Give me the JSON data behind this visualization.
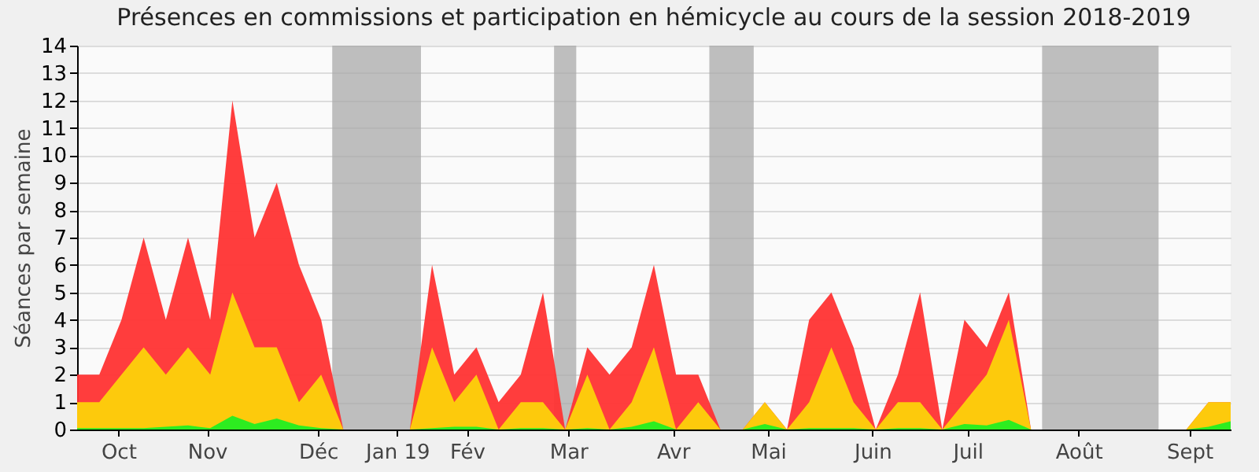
{
  "chart_data": {
    "type": "area",
    "title": "Présences en commissions et participation en hémicycle au cours de la session 2018-2019",
    "ylabel": "Séances par semaine",
    "x": [
      "2018-10-01",
      "2018-10-08",
      "2018-10-15",
      "2018-10-22",
      "2018-10-29",
      "2018-11-05",
      "2018-11-12",
      "2018-11-19",
      "2018-11-26",
      "2018-12-03",
      "2018-12-10",
      "2018-12-17",
      "2018-12-24",
      "2018-12-31",
      "2019-01-07",
      "2019-01-14",
      "2019-01-21",
      "2019-01-28",
      "2019-02-04",
      "2019-02-11",
      "2019-02-18",
      "2019-02-25",
      "2019-03-04",
      "2019-03-11",
      "2019-03-18",
      "2019-03-25",
      "2019-04-01",
      "2019-04-08",
      "2019-04-15",
      "2019-04-22",
      "2019-04-29",
      "2019-05-06",
      "2019-05-13",
      "2019-05-20",
      "2019-05-27",
      "2019-06-03",
      "2019-06-10",
      "2019-06-17",
      "2019-06-24",
      "2019-07-01",
      "2019-07-08",
      "2019-07-15",
      "2019-07-22",
      "2019-07-29",
      "2019-08-05",
      "2019-08-12",
      "2019-08-19",
      "2019-08-26",
      "2019-09-02",
      "2019-09-09",
      "2019-09-16",
      "2019-09-23",
      "2019-09-30"
    ],
    "series": [
      {
        "color": "#ff3333",
        "values": [
          2,
          2,
          4,
          7,
          4,
          7,
          4,
          12,
          7,
          9,
          6,
          4,
          0,
          0,
          0,
          0,
          6,
          2,
          3,
          1,
          2,
          5,
          0,
          3,
          2,
          3,
          6,
          2,
          2,
          0,
          0,
          1,
          0,
          4,
          5,
          3,
          0,
          2,
          5,
          0,
          4,
          3,
          5,
          0,
          0,
          0,
          0,
          0,
          0,
          0,
          0,
          1,
          1
        ]
      },
      {
        "color": "#fdd20a",
        "values": [
          1,
          1,
          2,
          3,
          2,
          3,
          2,
          5,
          3,
          3,
          1,
          2,
          0,
          0,
          0,
          0,
          3,
          1,
          2,
          0,
          1,
          1,
          0,
          2,
          0,
          1,
          3,
          0,
          1,
          0,
          0,
          1,
          0,
          1,
          3,
          1,
          0,
          1,
          1,
          0,
          1,
          2,
          4,
          0,
          0,
          0,
          0,
          0,
          0,
          0,
          0,
          1,
          1
        ]
      },
      {
        "color": "#22ee22",
        "values": [
          0.05,
          0.05,
          0.05,
          0.05,
          0.1,
          0.15,
          0.05,
          0.5,
          0.2,
          0.4,
          0.15,
          0.05,
          0,
          0,
          0,
          0,
          0.05,
          0.1,
          0.1,
          0,
          0.05,
          0.05,
          0,
          0.05,
          0,
          0.1,
          0.3,
          0,
          0,
          0,
          0,
          0.2,
          0,
          0.05,
          0.05,
          0.05,
          0,
          0.05,
          0.05,
          0,
          0.2,
          0.15,
          0.35,
          0,
          0,
          0,
          0,
          0,
          0,
          0,
          0,
          0.1,
          0.3
        ]
      }
    ],
    "xlim": [
      "2018-10-01",
      "2019-09-30"
    ],
    "xticks": [
      {
        "value": "2018-10-14",
        "label": "Oct"
      },
      {
        "value": "2018-11-11",
        "label": "Nov"
      },
      {
        "value": "2018-12-16",
        "label": "Déc"
      },
      {
        "value": "2019-01-10",
        "label": "Jan 19"
      },
      {
        "value": "2019-02-01",
        "label": "Fév"
      },
      {
        "value": "2019-03-05",
        "label": "Mar"
      },
      {
        "value": "2019-04-07",
        "label": "Avr"
      },
      {
        "value": "2019-05-07",
        "label": "Mai"
      },
      {
        "value": "2019-06-09",
        "label": "Juin"
      },
      {
        "value": "2019-07-09",
        "label": "Juil"
      },
      {
        "value": "2019-08-13",
        "label": "Août"
      },
      {
        "value": "2019-09-17",
        "label": "Sept"
      }
    ],
    "ylim": [
      0,
      14
    ],
    "yticks": [
      0,
      1,
      2,
      3,
      4,
      5,
      6,
      7,
      8,
      9,
      10,
      11,
      12,
      13,
      14
    ],
    "bands": [
      {
        "axis": "x",
        "from": "2018-12-20T12:00",
        "to": "2019-01-17T12:00",
        "color": "#aaaaaa"
      },
      {
        "axis": "x",
        "from": "2019-02-28T12:00",
        "to": "2019-03-07T12:00",
        "color": "#aaaaaa"
      },
      {
        "axis": "x",
        "from": "2019-04-18T12:00",
        "to": "2019-05-02T12:00",
        "color": "#aaaaaa"
      },
      {
        "axis": "x",
        "from": "2019-08-01T12:00",
        "to": "2019-09-07T06:00",
        "color": "#aaaaaa"
      }
    ],
    "grid": "y"
  }
}
